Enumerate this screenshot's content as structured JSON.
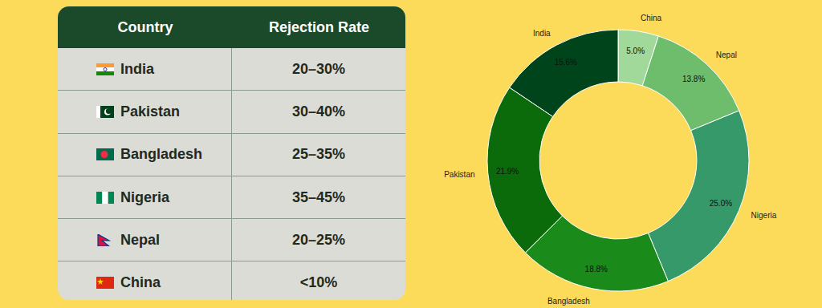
{
  "table": {
    "header": [
      "Country",
      "Rejection Rate"
    ],
    "rows": [
      [
        "India",
        "20–30%"
      ],
      [
        "Pakistan",
        "30–40%"
      ],
      [
        "Bangladesh",
        "25–35%"
      ],
      [
        "Nigeria",
        "35–45%"
      ],
      [
        "Nepal",
        "20–25%"
      ],
      [
        "China",
        "<10%"
      ]
    ]
  },
  "chart_data": {
    "type": "pie",
    "categories": [
      "China",
      "Nepal",
      "Nigeria",
      "Bangladesh",
      "Pakistan",
      "India"
    ],
    "values": [
      5.0,
      13.8,
      25.0,
      18.8,
      21.9,
      15.6
    ],
    "value_labels": [
      "5.0%",
      "13.8%",
      "25.0%",
      "18.8%",
      "21.9%",
      "15.6%"
    ],
    "colors": [
      "#a1d99b",
      "#6dbd6d",
      "#35996a",
      "#1a8a1a",
      "#0b6b0b",
      "#00441b"
    ],
    "data_labels": true
  }
}
